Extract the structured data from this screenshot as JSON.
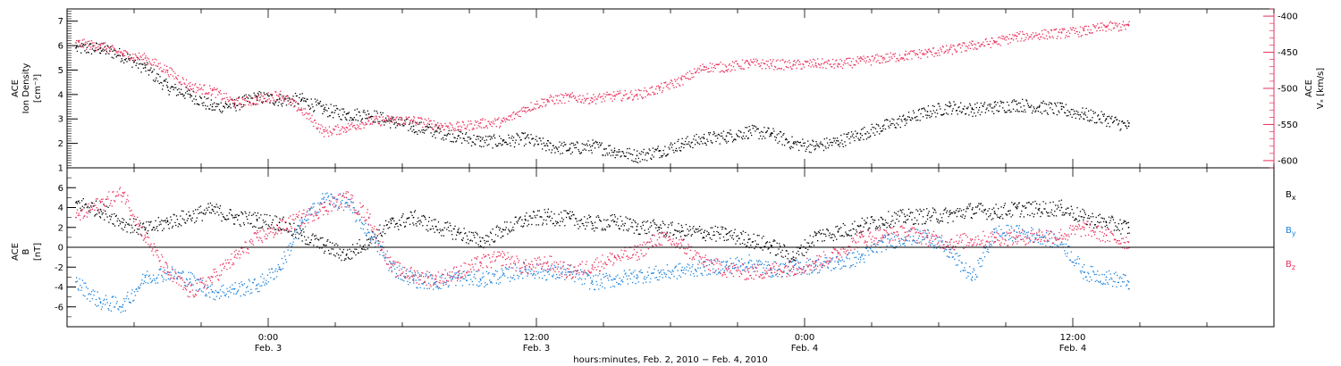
{
  "chart_data": [
    {
      "type": "scatter",
      "panel": "ion-density-and-velocity",
      "left_axis": {
        "label_line1": "ACE",
        "label_line2": "Ion Density",
        "units": "[cm⁻³]",
        "ylim": [
          1,
          7.5
        ],
        "ticks": [
          1,
          2,
          3,
          4,
          5,
          6,
          7
        ],
        "tick_labels": [
          "1",
          "2",
          "3",
          "4",
          "5",
          "6",
          "7"
        ]
      },
      "right_axis": {
        "label_line1": "ACE",
        "label_line2": "Vₓ [km/s]",
        "ylim": [
          -610,
          -390
        ],
        "ticks": [
          -400,
          -450,
          -500,
          -550,
          -600
        ],
        "tick_labels": [
          "-400",
          "-450",
          "-500",
          "-550",
          "-600"
        ]
      },
      "series": [
        {
          "axis": "left",
          "color": "#000000",
          "x": [
            -8.6,
            -7.5,
            -6.5,
            -5.5,
            -4.5,
            -3.5,
            -2.5,
            -1.5,
            -0.5,
            0.5,
            1.5,
            2.5,
            3.5,
            4.5,
            5.5,
            6.5,
            7.5,
            8.5,
            9.5,
            10.5,
            11.5,
            12.5,
            13.5,
            14.5,
            15.5,
            16.5,
            17.5,
            18.5,
            19.5,
            20.5,
            21.5,
            22.5,
            23.5,
            24.5,
            25.5,
            26.5,
            27.5,
            28.5,
            29.5,
            30.5,
            31.5,
            32.5,
            33.5,
            34.5,
            35.5,
            36.5,
            37.5,
            38.5
          ],
          "y": [
            5.9,
            5.9,
            5.6,
            5.1,
            4.3,
            4.0,
            3.5,
            3.6,
            3.9,
            3.8,
            3.8,
            3.4,
            3.2,
            3.2,
            2.9,
            2.7,
            2.5,
            2.3,
            2.1,
            2.1,
            2.2,
            1.9,
            1.8,
            1.9,
            1.7,
            1.5,
            1.7,
            2.0,
            2.2,
            2.3,
            2.5,
            2.4,
            2.0,
            1.9,
            2.1,
            2.4,
            2.7,
            3.0,
            3.3,
            3.5,
            3.4,
            3.5,
            3.6,
            3.5,
            3.4,
            3.2,
            3.0,
            2.7
          ]
        },
        {
          "axis": "right",
          "color": "#e8305c",
          "x": [
            -8.6,
            -7.5,
            -6.5,
            -5.5,
            -4.5,
            -3.5,
            -2.5,
            -1.5,
            -0.5,
            0.5,
            1.5,
            2.5,
            3.5,
            4.5,
            5.5,
            6.5,
            7.5,
            8.5,
            9.5,
            10.5,
            11.5,
            12.5,
            13.5,
            14.5,
            15.5,
            16.5,
            17.5,
            18.5,
            19.5,
            20.5,
            21.5,
            22.5,
            23.5,
            24.5,
            25.5,
            26.5,
            27.5,
            28.5,
            29.5,
            30.5,
            31.5,
            32.5,
            33.5,
            34.5,
            35.5,
            36.5,
            37.5,
            38.5
          ],
          "y": [
            -437,
            -441,
            -452,
            -458,
            -475,
            -497,
            -503,
            -520,
            -515,
            -508,
            -530,
            -560,
            -554,
            -545,
            -543,
            -544,
            -550,
            -553,
            -548,
            -546,
            -527,
            -516,
            -512,
            -514,
            -510,
            -508,
            -500,
            -488,
            -470,
            -470,
            -465,
            -466,
            -467,
            -465,
            -466,
            -462,
            -458,
            -454,
            -450,
            -446,
            -440,
            -435,
            -428,
            -425,
            -423,
            -420,
            -414,
            -413
          ]
        }
      ]
    },
    {
      "type": "scatter",
      "panel": "magnetic-field",
      "left_axis": {
        "label_line1": "ACE",
        "label_line2": "B",
        "units": "[nT]",
        "ylim": [
          -8,
          8
        ],
        "ticks": [
          -6,
          -4,
          -2,
          0,
          2,
          4,
          6
        ],
        "tick_labels": [
          "-6",
          "-4",
          "-2",
          "0",
          "2",
          "4",
          "6"
        ]
      },
      "legend": {
        "placement": "right",
        "entries": [
          {
            "base": "B",
            "sub": "x",
            "color": "#000000"
          },
          {
            "base": "B",
            "sub": "y",
            "color": "#1a82db"
          },
          {
            "base": "B",
            "sub": "z",
            "color": "#e8305c"
          }
        ]
      },
      "series": [
        {
          "color": "#000000",
          "x": [
            -8.6,
            -7.5,
            -6.5,
            -5.5,
            -4.5,
            -3.5,
            -2.5,
            -1.5,
            -0.5,
            0.5,
            1.5,
            2.5,
            3.5,
            4.5,
            5.5,
            6.5,
            7.5,
            8.5,
            9.5,
            10.5,
            11.5,
            12.5,
            13.5,
            14.5,
            15.5,
            16.5,
            17.5,
            18.5,
            19.5,
            20.5,
            21.5,
            22.5,
            23.5,
            24.5,
            25.5,
            26.5,
            27.5,
            28.5,
            29.5,
            30.5,
            31.5,
            32.5,
            33.5,
            34.5,
            35.5,
            36.5,
            37.5,
            38.5
          ],
          "y": [
            4.5,
            3.8,
            2.5,
            1.8,
            2.6,
            3.2,
            3.8,
            3.0,
            2.8,
            2.5,
            1.2,
            0.2,
            -0.8,
            0.8,
            2.4,
            3.0,
            2.1,
            1.5,
            0.6,
            1.8,
            2.8,
            3.1,
            2.9,
            2.4,
            2.6,
            2.1,
            2.0,
            1.6,
            1.5,
            1.3,
            0.8,
            0.2,
            -1.0,
            1.2,
            1.6,
            2.2,
            2.8,
            3.1,
            3.2,
            3.3,
            3.8,
            3.6,
            3.9,
            3.9,
            4.0,
            3.0,
            2.5,
            2.0
          ]
        },
        {
          "color": "#1a82db",
          "x": [
            -8.6,
            -7.5,
            -6.5,
            -5.5,
            -4.5,
            -3.5,
            -2.5,
            -1.5,
            -0.5,
            0.5,
            1.5,
            2.5,
            3.5,
            4.5,
            5.5,
            6.5,
            7.5,
            8.5,
            9.5,
            10.5,
            11.5,
            12.5,
            13.5,
            14.5,
            15.5,
            16.5,
            17.5,
            18.5,
            19.5,
            20.5,
            21.5,
            22.5,
            23.5,
            24.5,
            25.5,
            26.5,
            27.5,
            28.5,
            29.5,
            30.5,
            31.5,
            32.5,
            33.5,
            34.5,
            35.5,
            36.5,
            37.5,
            38.5
          ],
          "y": [
            -3.5,
            -5.5,
            -5.8,
            -3.0,
            -2.5,
            -3.2,
            -4.5,
            -4.2,
            -3.8,
            -2.0,
            2.5,
            5.0,
            4.5,
            1.5,
            -2.0,
            -3.2,
            -3.5,
            -3.0,
            -3.2,
            -2.8,
            -2.2,
            -2.5,
            -2.5,
            -3.5,
            -3.2,
            -2.8,
            -2.6,
            -2.3,
            -2.0,
            -1.8,
            -1.5,
            -2.2,
            -2.0,
            -1.8,
            -1.5,
            -1.0,
            0.5,
            1.0,
            1.2,
            -0.5,
            -3.0,
            1.5,
            1.5,
            1.2,
            0.5,
            -2.5,
            -3.0,
            -3.5
          ]
        },
        {
          "color": "#e8305c",
          "x": [
            -8.6,
            -7.5,
            -6.5,
            -5.5,
            -4.5,
            -3.5,
            -2.5,
            -1.5,
            -0.5,
            0.5,
            1.5,
            2.5,
            3.5,
            4.5,
            5.5,
            6.5,
            7.5,
            8.5,
            9.5,
            10.5,
            11.5,
            12.5,
            13.5,
            14.5,
            15.5,
            16.5,
            17.5,
            18.5,
            19.5,
            20.5,
            21.5,
            22.5,
            23.5,
            24.5,
            25.5,
            26.5,
            27.5,
            28.5,
            29.5,
            30.5,
            31.5,
            32.5,
            33.5,
            34.5,
            35.5,
            36.5,
            37.5,
            38.5
          ],
          "y": [
            3.0,
            4.5,
            5.5,
            1.0,
            -2.5,
            -4.5,
            -3.0,
            -1.0,
            1.0,
            2.0,
            3.0,
            4.0,
            5.0,
            3.0,
            -2.0,
            -2.8,
            -3.2,
            -2.5,
            -1.5,
            -1.0,
            -2.0,
            -1.5,
            -2.5,
            -1.8,
            -1.0,
            -0.5,
            1.0,
            0.2,
            -1.5,
            -2.2,
            -2.5,
            -2.3,
            -2.0,
            -1.5,
            -0.5,
            1.0,
            1.2,
            1.5,
            1.0,
            0.5,
            0.8,
            1.0,
            1.0,
            1.2,
            1.2,
            2.0,
            1.2,
            0.5
          ]
        }
      ]
    }
  ],
  "time_axis": {
    "xlim": [
      -9,
      45
    ],
    "major_ticks": [
      0,
      12,
      24,
      36
    ],
    "time_labels": [
      "0:00",
      "12:00",
      "0:00",
      "12:00"
    ],
    "date_labels": [
      "Feb. 3",
      "Feb. 3",
      "Feb. 4",
      "Feb. 4"
    ],
    "caption": "hours:minutes, Feb.  2, 2010 − Feb.  4, 2010"
  },
  "colors": {
    "black": "#000000",
    "red": "#e8305c",
    "blue": "#1a82db"
  }
}
